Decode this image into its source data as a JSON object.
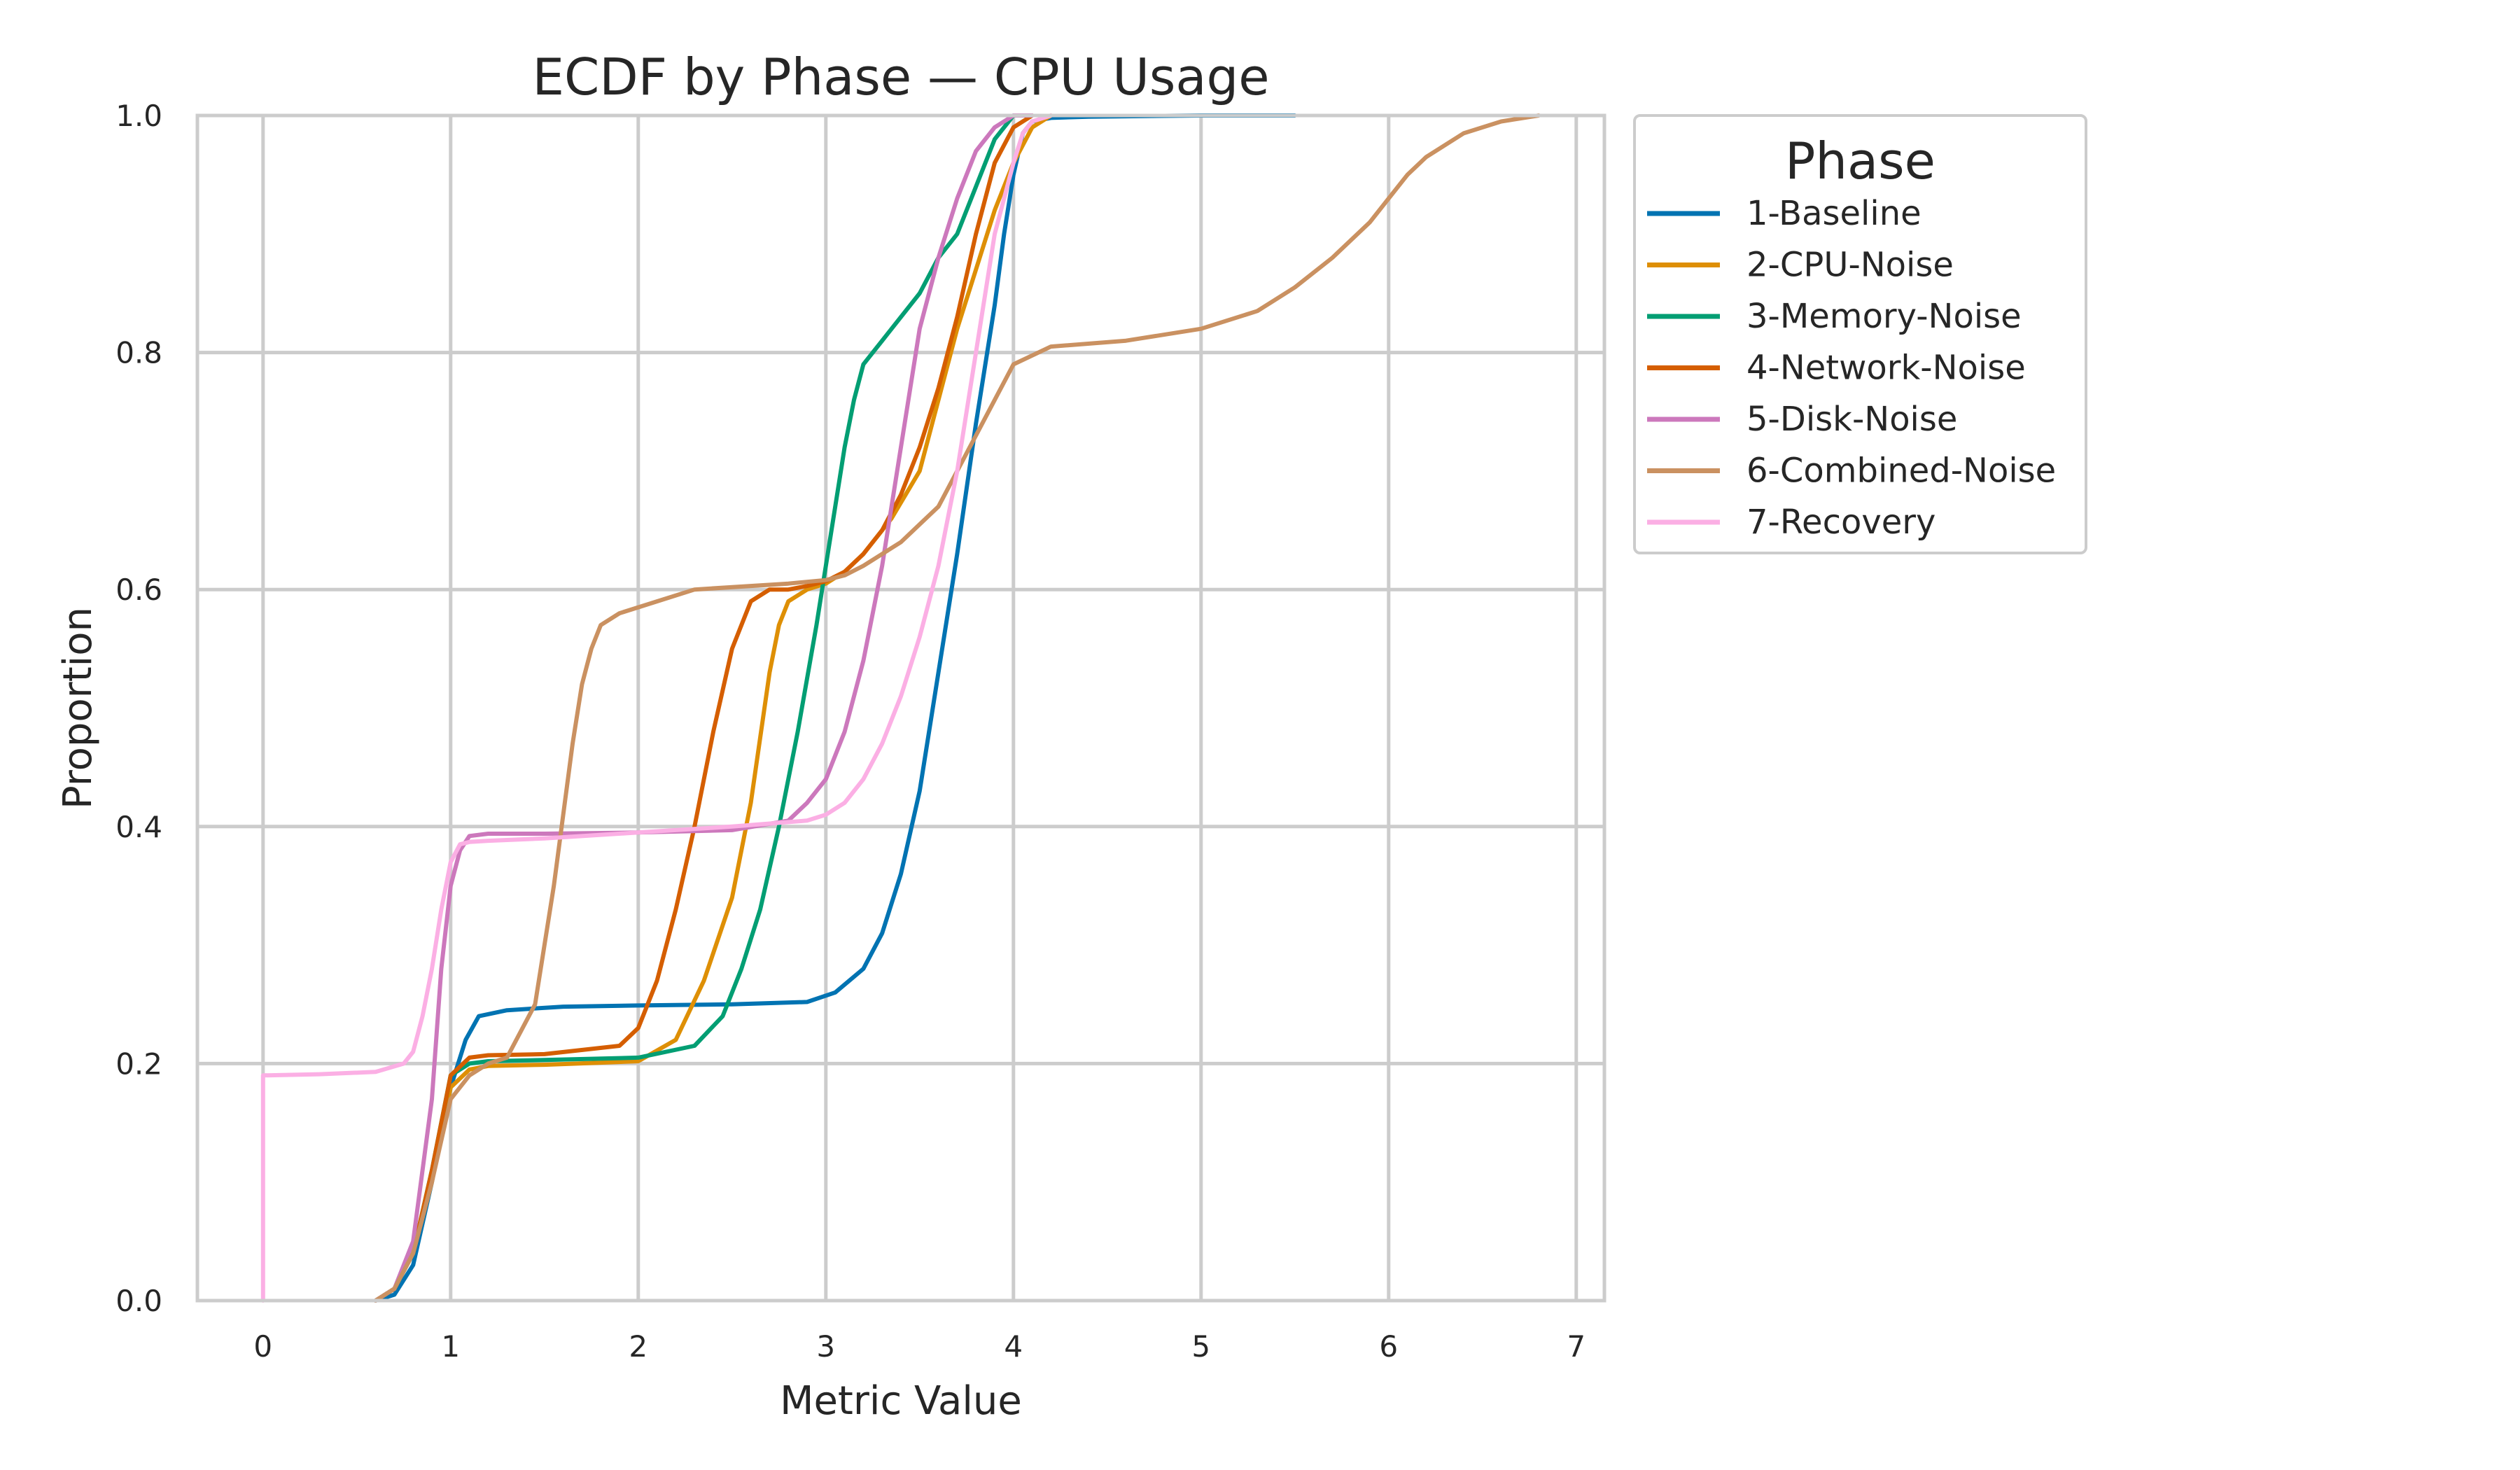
{
  "chart_data": {
    "type": "line",
    "title": "ECDF by Phase — CPU Usage",
    "xlabel": "Metric Value",
    "ylabel": "Proportion",
    "xlim": [
      -0.35,
      7.15
    ],
    "ylim": [
      0,
      1.0
    ],
    "xticks": [
      "0",
      "1",
      "2",
      "3",
      "4",
      "5",
      "6",
      "7"
    ],
    "yticks": [
      "0.0",
      "0.2",
      "0.4",
      "0.6",
      "0.8",
      "1.0"
    ],
    "grid": true,
    "legend": {
      "title": "Phase",
      "placement": "outside-right-top"
    },
    "series": [
      {
        "name": "1-Baseline",
        "color": "#0173b2",
        "x": [
          0.6,
          0.7,
          0.8,
          0.9,
          1.0,
          1.08,
          1.15,
          1.3,
          1.6,
          2.0,
          2.5,
          2.9,
          3.05,
          3.2,
          3.3,
          3.4,
          3.5,
          3.6,
          3.7,
          3.8,
          3.9,
          3.95,
          4.0,
          4.05,
          4.1,
          4.2,
          4.4,
          5.0,
          5.5
        ],
        "y": [
          0.0,
          0.005,
          0.03,
          0.1,
          0.18,
          0.22,
          0.24,
          0.245,
          0.248,
          0.249,
          0.25,
          0.252,
          0.26,
          0.28,
          0.31,
          0.36,
          0.43,
          0.53,
          0.63,
          0.74,
          0.84,
          0.9,
          0.95,
          0.985,
          0.995,
          0.998,
          0.999,
          1.0,
          1.0
        ]
      },
      {
        "name": "2-CPU-Noise",
        "color": "#de8f05",
        "x": [
          0.6,
          0.7,
          0.8,
          0.9,
          1.0,
          1.1,
          1.2,
          1.5,
          2.0,
          2.2,
          2.35,
          2.5,
          2.6,
          2.7,
          2.75,
          2.8,
          2.9,
          3.0,
          3.1,
          3.2,
          3.35,
          3.5,
          3.6,
          3.7,
          3.8,
          3.9,
          4.0,
          4.1,
          4.2
        ],
        "y": [
          0.0,
          0.01,
          0.04,
          0.1,
          0.18,
          0.195,
          0.198,
          0.199,
          0.202,
          0.22,
          0.27,
          0.34,
          0.42,
          0.53,
          0.57,
          0.59,
          0.6,
          0.605,
          0.615,
          0.63,
          0.66,
          0.7,
          0.76,
          0.82,
          0.87,
          0.92,
          0.96,
          0.99,
          1.0
        ]
      },
      {
        "name": "3-Memory-Noise",
        "color": "#029e73",
        "x": [
          0.6,
          0.7,
          0.8,
          0.9,
          1.0,
          1.1,
          1.2,
          1.5,
          2.0,
          2.3,
          2.45,
          2.55,
          2.65,
          2.75,
          2.85,
          2.95,
          3.0,
          3.05,
          3.1,
          3.15,
          3.2,
          3.3,
          3.5,
          3.6,
          3.7,
          3.8,
          3.9,
          4.0
        ],
        "y": [
          0.0,
          0.01,
          0.04,
          0.11,
          0.19,
          0.2,
          0.202,
          0.203,
          0.205,
          0.215,
          0.24,
          0.28,
          0.33,
          0.4,
          0.48,
          0.57,
          0.62,
          0.67,
          0.72,
          0.76,
          0.79,
          0.81,
          0.85,
          0.88,
          0.9,
          0.94,
          0.98,
          1.0
        ]
      },
      {
        "name": "4-Network-Noise",
        "color": "#d55e00",
        "x": [
          0.6,
          0.7,
          0.8,
          0.9,
          1.0,
          1.1,
          1.2,
          1.5,
          1.9,
          2.0,
          2.1,
          2.2,
          2.3,
          2.4,
          2.5,
          2.6,
          2.7,
          2.8,
          2.9,
          3.0,
          3.1,
          3.2,
          3.3,
          3.4,
          3.5,
          3.6,
          3.7,
          3.8,
          3.9,
          4.0,
          4.1
        ],
        "y": [
          0.0,
          0.01,
          0.04,
          0.11,
          0.19,
          0.205,
          0.207,
          0.208,
          0.215,
          0.23,
          0.27,
          0.33,
          0.4,
          0.48,
          0.55,
          0.59,
          0.6,
          0.6,
          0.603,
          0.607,
          0.615,
          0.63,
          0.65,
          0.68,
          0.72,
          0.77,
          0.83,
          0.9,
          0.96,
          0.99,
          1.0
        ]
      },
      {
        "name": "5-Disk-Noise",
        "color": "#cc78bc",
        "x": [
          0.6,
          0.7,
          0.8,
          0.9,
          0.95,
          1.0,
          1.05,
          1.1,
          1.2,
          1.5,
          2.0,
          2.5,
          2.8,
          2.9,
          3.0,
          3.1,
          3.2,
          3.3,
          3.4,
          3.5,
          3.6,
          3.7,
          3.8,
          3.9,
          4.0,
          4.1
        ],
        "y": [
          0.0,
          0.01,
          0.05,
          0.17,
          0.28,
          0.35,
          0.38,
          0.392,
          0.394,
          0.394,
          0.395,
          0.397,
          0.405,
          0.42,
          0.44,
          0.48,
          0.54,
          0.62,
          0.72,
          0.82,
          0.88,
          0.93,
          0.97,
          0.99,
          1.0,
          1.0
        ]
      },
      {
        "name": "6-Combined-Noise",
        "color": "#ca9161",
        "x": [
          0.6,
          0.7,
          0.8,
          0.9,
          1.0,
          1.1,
          1.2,
          1.3,
          1.45,
          1.55,
          1.65,
          1.7,
          1.75,
          1.8,
          1.9,
          2.1,
          2.3,
          2.8,
          3.0,
          3.1,
          3.2,
          3.3,
          3.4,
          3.5,
          3.6,
          3.7,
          3.8,
          3.9,
          4.0,
          4.2,
          4.6,
          5.0,
          5.3,
          5.5,
          5.7,
          5.9,
          6.0,
          6.1,
          6.2,
          6.4,
          6.6,
          6.8
        ],
        "y": [
          0.0,
          0.01,
          0.04,
          0.1,
          0.17,
          0.19,
          0.2,
          0.205,
          0.25,
          0.35,
          0.47,
          0.52,
          0.55,
          0.57,
          0.58,
          0.59,
          0.6,
          0.605,
          0.608,
          0.612,
          0.62,
          0.63,
          0.64,
          0.655,
          0.67,
          0.7,
          0.73,
          0.76,
          0.79,
          0.805,
          0.81,
          0.82,
          0.835,
          0.855,
          0.88,
          0.91,
          0.93,
          0.95,
          0.965,
          0.985,
          0.995,
          1.0
        ]
      },
      {
        "name": "7-Recovery",
        "color": "#fbafe4",
        "x": [
          0.0,
          0.0,
          0.3,
          0.6,
          0.75,
          0.8,
          0.85,
          0.9,
          0.95,
          1.0,
          1.05,
          1.1,
          1.2,
          1.5,
          2.0,
          2.5,
          2.9,
          3.0,
          3.1,
          3.2,
          3.3,
          3.4,
          3.5,
          3.6,
          3.7,
          3.8,
          3.9,
          4.0,
          4.05,
          4.1,
          4.2
        ],
        "y": [
          0.0,
          0.19,
          0.191,
          0.193,
          0.2,
          0.21,
          0.24,
          0.28,
          0.33,
          0.37,
          0.385,
          0.387,
          0.388,
          0.39,
          0.395,
          0.4,
          0.405,
          0.41,
          0.42,
          0.44,
          0.47,
          0.51,
          0.56,
          0.62,
          0.7,
          0.8,
          0.9,
          0.96,
          0.985,
          0.995,
          1.0
        ]
      }
    ]
  }
}
